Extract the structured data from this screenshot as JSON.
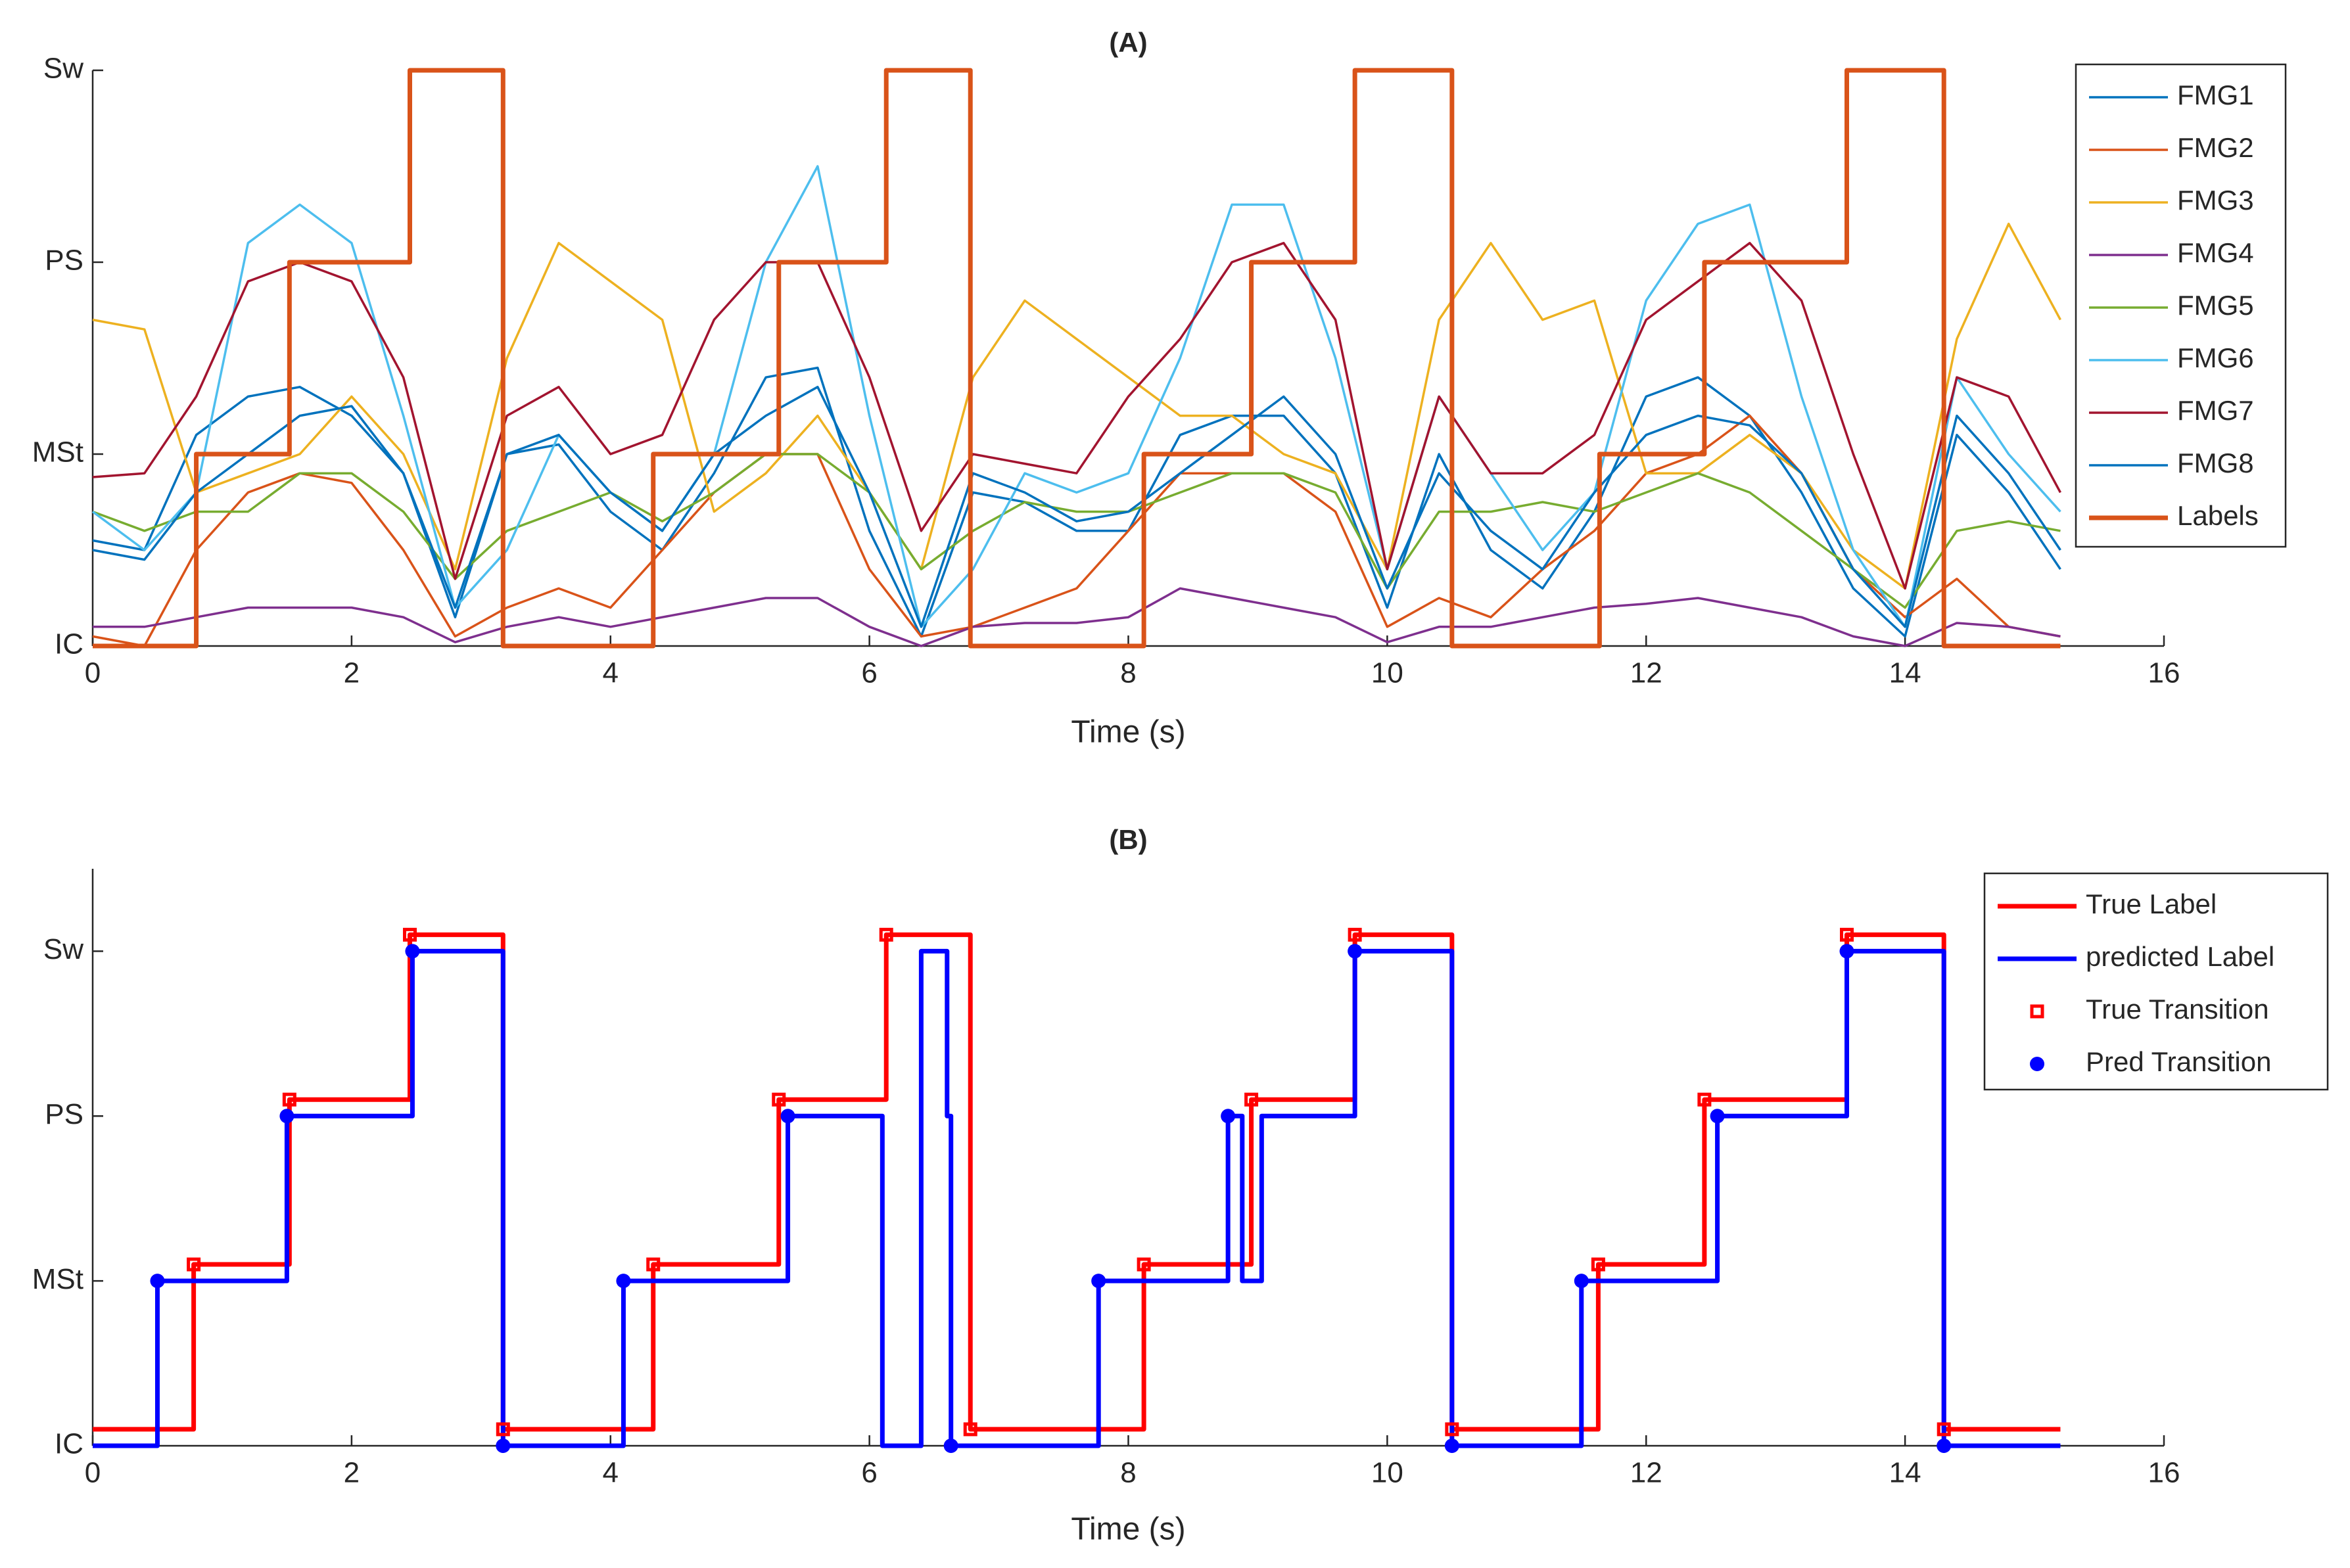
{
  "chart_data": [
    {
      "type": "line",
      "title": "(A)",
      "xlabel": "Time (s)",
      "xlim": [
        0,
        16
      ],
      "xticks": [
        0,
        2,
        4,
        6,
        8,
        10,
        12,
        14,
        16
      ],
      "ylim": [
        0,
        3
      ],
      "yticks": [
        {
          "value": 0,
          "label": "IC"
        },
        {
          "value": 1,
          "label": "MSt"
        },
        {
          "value": 2,
          "label": "PS"
        },
        {
          "value": 3,
          "label": "Sw"
        }
      ],
      "legend": "northeast",
      "series": [
        {
          "name": "FMG1",
          "color": "#0072bd",
          "style": "line",
          "x": [
            0,
            0.4,
            0.8,
            1.2,
            1.6,
            2.0,
            2.4,
            2.8,
            3.2,
            3.6,
            4.0,
            4.4,
            4.8,
            5.2,
            5.6,
            6.0,
            6.4,
            6.8,
            7.2,
            7.6,
            8.0,
            8.4,
            8.8,
            9.2,
            9.6,
            10.0,
            10.4,
            10.8,
            11.2,
            11.6,
            12.0,
            12.4,
            12.8,
            13.2,
            13.6,
            14.0,
            14.4,
            14.8,
            15.2
          ],
          "values": [
            0.55,
            0.5,
            1.1,
            1.3,
            1.35,
            1.2,
            0.9,
            0.15,
            1.0,
            1.05,
            0.7,
            0.5,
            0.9,
            1.4,
            1.45,
            0.6,
            0.05,
            0.8,
            0.75,
            0.6,
            0.6,
            1.1,
            1.2,
            1.2,
            0.9,
            0.2,
            1.0,
            0.5,
            0.3,
            0.7,
            1.3,
            1.4,
            1.2,
            0.8,
            0.3,
            0.05,
            1.1,
            0.8,
            0.4
          ]
        },
        {
          "name": "FMG2",
          "color": "#d95319",
          "style": "line",
          "x": [
            0,
            0.4,
            0.8,
            1.2,
            1.6,
            2.0,
            2.4,
            2.8,
            3.2,
            3.6,
            4.0,
            4.4,
            4.8,
            5.2,
            5.6,
            6.0,
            6.4,
            6.8,
            7.2,
            7.6,
            8.0,
            8.4,
            8.8,
            9.2,
            9.6,
            10.0,
            10.4,
            10.8,
            11.2,
            11.6,
            12.0,
            12.4,
            12.8,
            13.2,
            13.6,
            14.0,
            14.4,
            14.8,
            15.2
          ],
          "values": [
            0.05,
            0.0,
            0.5,
            0.8,
            0.9,
            0.85,
            0.5,
            0.05,
            0.2,
            0.3,
            0.2,
            0.5,
            0.8,
            1.0,
            1.0,
            0.4,
            0.05,
            0.1,
            0.2,
            0.3,
            0.6,
            0.9,
            0.9,
            0.9,
            0.7,
            0.1,
            0.25,
            0.15,
            0.4,
            0.6,
            0.9,
            1.0,
            1.2,
            0.9,
            0.4,
            0.15,
            0.35,
            0.1,
            0.05
          ]
        },
        {
          "name": "FMG3",
          "color": "#edb120",
          "style": "line",
          "x": [
            0,
            0.4,
            0.8,
            1.2,
            1.6,
            2.0,
            2.4,
            2.8,
            3.2,
            3.6,
            4.0,
            4.4,
            4.8,
            5.2,
            5.6,
            6.0,
            6.4,
            6.8,
            7.2,
            7.6,
            8.0,
            8.4,
            8.8,
            9.2,
            9.6,
            10.0,
            10.4,
            10.8,
            11.2,
            11.6,
            12.0,
            12.4,
            12.8,
            13.2,
            13.6,
            14.0,
            14.4,
            14.8,
            15.2
          ],
          "values": [
            1.7,
            1.65,
            0.8,
            0.9,
            1.0,
            1.3,
            1.0,
            0.4,
            1.5,
            2.1,
            1.9,
            1.7,
            0.7,
            0.9,
            1.2,
            0.8,
            0.4,
            1.4,
            1.8,
            1.6,
            1.4,
            1.2,
            1.2,
            1.0,
            0.9,
            0.4,
            1.7,
            2.1,
            1.7,
            1.8,
            0.9,
            0.9,
            1.1,
            0.9,
            0.5,
            0.3,
            1.6,
            2.2,
            1.7
          ]
        },
        {
          "name": "FMG4",
          "color": "#7e2f8e",
          "style": "line",
          "x": [
            0,
            0.4,
            0.8,
            1.2,
            1.6,
            2.0,
            2.4,
            2.8,
            3.2,
            3.6,
            4.0,
            4.4,
            4.8,
            5.2,
            5.6,
            6.0,
            6.4,
            6.8,
            7.2,
            7.6,
            8.0,
            8.4,
            8.8,
            9.2,
            9.6,
            10.0,
            10.4,
            10.8,
            11.2,
            11.6,
            12.0,
            12.4,
            12.8,
            13.2,
            13.6,
            14.0,
            14.4,
            14.8,
            15.2
          ],
          "values": [
            0.1,
            0.1,
            0.15,
            0.2,
            0.2,
            0.2,
            0.15,
            0.02,
            0.1,
            0.15,
            0.1,
            0.15,
            0.2,
            0.25,
            0.25,
            0.1,
            0.0,
            0.1,
            0.12,
            0.12,
            0.15,
            0.3,
            0.25,
            0.2,
            0.15,
            0.02,
            0.1,
            0.1,
            0.15,
            0.2,
            0.22,
            0.25,
            0.2,
            0.15,
            0.05,
            0.0,
            0.12,
            0.1,
            0.05
          ]
        },
        {
          "name": "FMG5",
          "color": "#77ac30",
          "style": "line",
          "x": [
            0,
            0.4,
            0.8,
            1.2,
            1.6,
            2.0,
            2.4,
            2.8,
            3.2,
            3.6,
            4.0,
            4.4,
            4.8,
            5.2,
            5.6,
            6.0,
            6.4,
            6.8,
            7.2,
            7.6,
            8.0,
            8.4,
            8.8,
            9.2,
            9.6,
            10.0,
            10.4,
            10.8,
            11.2,
            11.6,
            12.0,
            12.4,
            12.8,
            13.2,
            13.6,
            14.0,
            14.4,
            14.8,
            15.2
          ],
          "values": [
            0.7,
            0.6,
            0.7,
            0.7,
            0.9,
            0.9,
            0.7,
            0.35,
            0.6,
            0.7,
            0.8,
            0.65,
            0.8,
            1.0,
            1.0,
            0.8,
            0.4,
            0.6,
            0.75,
            0.7,
            0.7,
            0.8,
            0.9,
            0.9,
            0.8,
            0.3,
            0.7,
            0.7,
            0.75,
            0.7,
            0.8,
            0.9,
            0.8,
            0.6,
            0.4,
            0.2,
            0.6,
            0.65,
            0.6
          ]
        },
        {
          "name": "FMG6",
          "color": "#4dbeee",
          "style": "line",
          "x": [
            0,
            0.4,
            0.8,
            1.2,
            1.6,
            2.0,
            2.4,
            2.8,
            3.2,
            3.6,
            4.0,
            4.4,
            4.8,
            5.2,
            5.6,
            6.0,
            6.4,
            6.8,
            7.2,
            7.6,
            8.0,
            8.4,
            8.8,
            9.2,
            9.6,
            10.0,
            10.4,
            10.8,
            11.2,
            11.6,
            12.0,
            12.4,
            12.8,
            13.2,
            13.6,
            14.0,
            14.4,
            14.8,
            15.2
          ],
          "values": [
            0.7,
            0.5,
            0.8,
            2.1,
            2.3,
            2.1,
            1.2,
            0.2,
            0.5,
            1.1,
            0.8,
            0.6,
            1.0,
            2.0,
            2.5,
            1.2,
            0.1,
            0.4,
            0.9,
            0.8,
            0.9,
            1.5,
            2.3,
            2.3,
            1.5,
            0.4,
            1.3,
            0.9,
            0.5,
            0.8,
            1.8,
            2.2,
            2.3,
            1.3,
            0.5,
            0.1,
            1.4,
            1.0,
            0.7
          ]
        },
        {
          "name": "FMG7",
          "color": "#a2142f",
          "style": "line",
          "x": [
            0,
            0.4,
            0.8,
            1.2,
            1.6,
            2.0,
            2.4,
            2.8,
            3.2,
            3.6,
            4.0,
            4.4,
            4.8,
            5.2,
            5.6,
            6.0,
            6.4,
            6.8,
            7.2,
            7.6,
            8.0,
            8.4,
            8.8,
            9.2,
            9.6,
            10.0,
            10.4,
            10.8,
            11.2,
            11.6,
            12.0,
            12.4,
            12.8,
            13.2,
            13.6,
            14.0,
            14.4,
            14.8,
            15.2
          ],
          "values": [
            0.88,
            0.9,
            1.3,
            1.9,
            2.0,
            1.9,
            1.4,
            0.35,
            1.2,
            1.35,
            1.0,
            1.1,
            1.7,
            2.0,
            2.0,
            1.4,
            0.6,
            1.0,
            0.95,
            0.9,
            1.3,
            1.6,
            2.0,
            2.1,
            1.7,
            0.4,
            1.3,
            0.9,
            0.9,
            1.1,
            1.7,
            1.9,
            2.1,
            1.8,
            1.0,
            0.3,
            1.4,
            1.3,
            0.8
          ]
        },
        {
          "name": "FMG8",
          "color": "#0072bd",
          "style": "line",
          "x": [
            0,
            0.4,
            0.8,
            1.2,
            1.6,
            2.0,
            2.4,
            2.8,
            3.2,
            3.6,
            4.0,
            4.4,
            4.8,
            5.2,
            5.6,
            6.0,
            6.4,
            6.8,
            7.2,
            7.6,
            8.0,
            8.4,
            8.8,
            9.2,
            9.6,
            10.0,
            10.4,
            10.8,
            11.2,
            11.6,
            12.0,
            12.4,
            12.8,
            13.2,
            13.6,
            14.0,
            14.4,
            14.8,
            15.2
          ],
          "values": [
            0.5,
            0.45,
            0.8,
            1.0,
            1.2,
            1.25,
            0.9,
            0.2,
            1.0,
            1.1,
            0.8,
            0.6,
            1.0,
            1.2,
            1.35,
            0.8,
            0.1,
            0.9,
            0.8,
            0.65,
            0.7,
            0.9,
            1.1,
            1.3,
            1.0,
            0.3,
            0.9,
            0.6,
            0.4,
            0.8,
            1.1,
            1.2,
            1.15,
            0.9,
            0.4,
            0.1,
            1.2,
            0.9,
            0.5
          ]
        },
        {
          "name": "Labels",
          "color": "#d95319",
          "style": "step",
          "x": [
            0,
            0.8,
            1.52,
            2.45,
            3.17,
            4.33,
            5.3,
            6.13,
            6.78,
            8.12,
            8.95,
            9.75,
            10.5,
            11.64,
            12.45,
            13.55,
            14.3,
            15.2
          ],
          "values": [
            0,
            1,
            2,
            3,
            0,
            1,
            2,
            3,
            0,
            1,
            2,
            3,
            0,
            1,
            2,
            3,
            0,
            0
          ]
        }
      ]
    },
    {
      "type": "line",
      "title": "(B)",
      "xlabel": "Time (s)",
      "xlim": [
        0,
        16
      ],
      "xticks": [
        0,
        2,
        4,
        6,
        8,
        10,
        12,
        14,
        16
      ],
      "ylim": [
        0,
        3.5
      ],
      "yticks": [
        {
          "value": 0,
          "label": "IC"
        },
        {
          "value": 1,
          "label": "MSt"
        },
        {
          "value": 2,
          "label": "PS"
        },
        {
          "value": 3,
          "label": "Sw"
        }
      ],
      "legend": "northeast",
      "series": [
        {
          "name": "True Label",
          "color": "#ff0000",
          "style": "step",
          "x": [
            0,
            0.78,
            1.52,
            2.45,
            3.17,
            4.33,
            5.3,
            6.13,
            6.78,
            8.12,
            8.95,
            9.75,
            10.5,
            11.63,
            12.45,
            13.55,
            14.3,
            15.2
          ],
          "values": [
            0.1,
            1.1,
            2.1,
            3.1,
            0.1,
            1.1,
            2.1,
            3.1,
            0.1,
            1.1,
            2.1,
            3.1,
            0.1,
            1.1,
            2.1,
            3.1,
            0.1,
            0.1
          ]
        },
        {
          "name": "predicted Label",
          "color": "#0000ff",
          "style": "step",
          "x": [
            0,
            0.5,
            1.5,
            2.47,
            3.17,
            4.1,
            5.37,
            6.1,
            6.4,
            6.6,
            6.63,
            7.77,
            8.77,
            8.88,
            9.03,
            9.75,
            10.5,
            11.5,
            12.55,
            13.55,
            14.3,
            15.2
          ],
          "values": [
            0,
            1,
            2,
            3,
            0,
            1,
            2,
            0,
            3,
            2,
            0,
            1,
            2,
            1,
            2,
            3,
            0,
            1,
            2,
            3,
            0,
            0
          ]
        },
        {
          "name": "True Transition",
          "color": "#ff0000",
          "style": "square",
          "x": [
            0.78,
            1.52,
            2.45,
            3.17,
            4.33,
            5.3,
            6.13,
            6.78,
            8.12,
            8.95,
            9.75,
            10.5,
            11.63,
            12.45,
            13.55,
            14.3
          ],
          "values": [
            1.1,
            2.1,
            3.1,
            0.1,
            1.1,
            2.1,
            3.1,
            0.1,
            1.1,
            2.1,
            3.1,
            0.1,
            1.1,
            2.1,
            3.1,
            0.1
          ]
        },
        {
          "name": "Pred Transition",
          "color": "#0000ff",
          "style": "circle",
          "x": [
            0.5,
            1.5,
            2.47,
            3.17,
            4.1,
            5.37,
            6.63,
            7.77,
            8.77,
            9.75,
            10.5,
            11.5,
            12.55,
            13.55,
            14.3
          ],
          "values": [
            1,
            2,
            3,
            0,
            1,
            2,
            0,
            1,
            2,
            3,
            0,
            1,
            2,
            3,
            0
          ]
        }
      ]
    }
  ]
}
